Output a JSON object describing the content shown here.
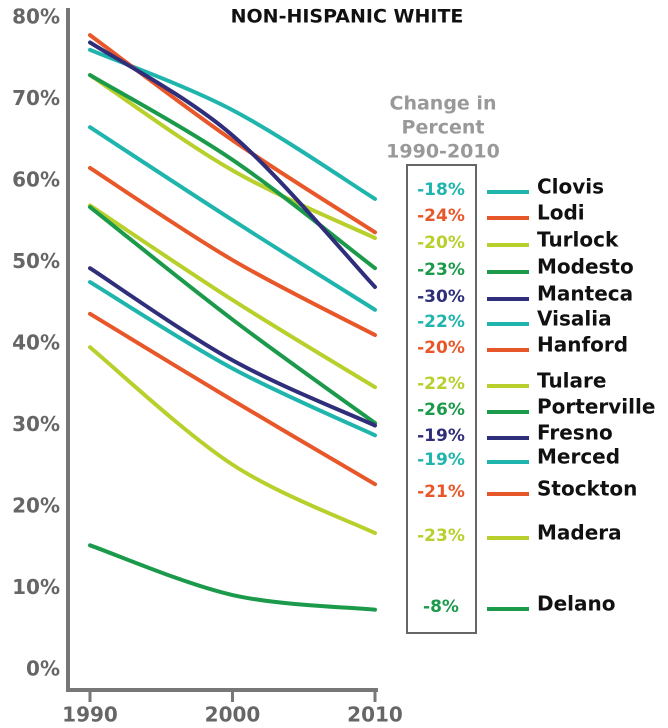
{
  "chart_data": {
    "type": "line",
    "title": "NON-HISPANIC WHITE",
    "box_title": [
      "Change in",
      "Percent",
      "1990-2010"
    ],
    "x": [
      1990,
      2000,
      2010
    ],
    "xlim": [
      1990,
      2010
    ],
    "xticks": [
      1990,
      2000,
      2010
    ],
    "ylim": [
      0,
      80
    ],
    "yticks": [
      {
        "value": 0,
        "label": "0%"
      },
      {
        "value": 10,
        "label": "10%"
      },
      {
        "value": 20,
        "label": "20%"
      },
      {
        "value": 30,
        "label": "30%"
      },
      {
        "value": 40,
        "label": "40%"
      },
      {
        "value": 50,
        "label": "50%"
      },
      {
        "value": 60,
        "label": "60%"
      },
      {
        "value": 70,
        "label": "70%"
      },
      {
        "value": 80,
        "label": "80%"
      }
    ],
    "series": [
      {
        "name": "Clovis",
        "color": "#1fb5ad",
        "values": [
          76.1,
          68.7,
          57.8
        ],
        "change": "-18%"
      },
      {
        "name": "Lodi",
        "color": "#e8572a",
        "values": [
          77.9,
          65.0,
          53.7
        ],
        "change": "-24%"
      },
      {
        "name": "Turlock",
        "color": "#b9cf2b",
        "values": [
          73.0,
          61.3,
          53.0
        ],
        "change": "-20%"
      },
      {
        "name": "Modesto",
        "color": "#1a9a4a",
        "values": [
          73.0,
          62.6,
          49.3
        ],
        "change": "-23%"
      },
      {
        "name": "Manteca",
        "color": "#2e2e7a",
        "values": [
          77.0,
          65.6,
          47.0
        ],
        "change": "-30%"
      },
      {
        "name": "Visalia",
        "color": "#1fb5ad",
        "values": [
          66.6,
          55.2,
          44.2
        ],
        "change": "-22%"
      },
      {
        "name": "Hanford",
        "color": "#e8572a",
        "values": [
          61.6,
          50.3,
          41.1
        ],
        "change": "-20%"
      },
      {
        "name": "Tulare",
        "color": "#b9cf2b",
        "values": [
          57.0,
          45.4,
          34.7
        ],
        "change": "-22%"
      },
      {
        "name": "Porterville",
        "color": "#1a9a4a",
        "values": [
          56.8,
          43.0,
          30.3
        ],
        "change": "-26%"
      },
      {
        "name": "Fresno",
        "color": "#2e2e7a",
        "values": [
          49.3,
          38.0,
          30.0
        ],
        "change": "-19%"
      },
      {
        "name": "Merced",
        "color": "#1fb5ad",
        "values": [
          47.6,
          37.0,
          28.8
        ],
        "change": "-19%"
      },
      {
        "name": "Stockton",
        "color": "#e8572a",
        "values": [
          43.7,
          33.1,
          22.8
        ],
        "change": "-21%"
      },
      {
        "name": "Madera",
        "color": "#b9cf2b",
        "values": [
          39.6,
          25.2,
          16.8
        ],
        "change": "-23%"
      },
      {
        "name": "Delano",
        "color": "#1a9a4a",
        "values": [
          15.3,
          9.2,
          7.4
        ],
        "change": "-8%"
      }
    ]
  }
}
